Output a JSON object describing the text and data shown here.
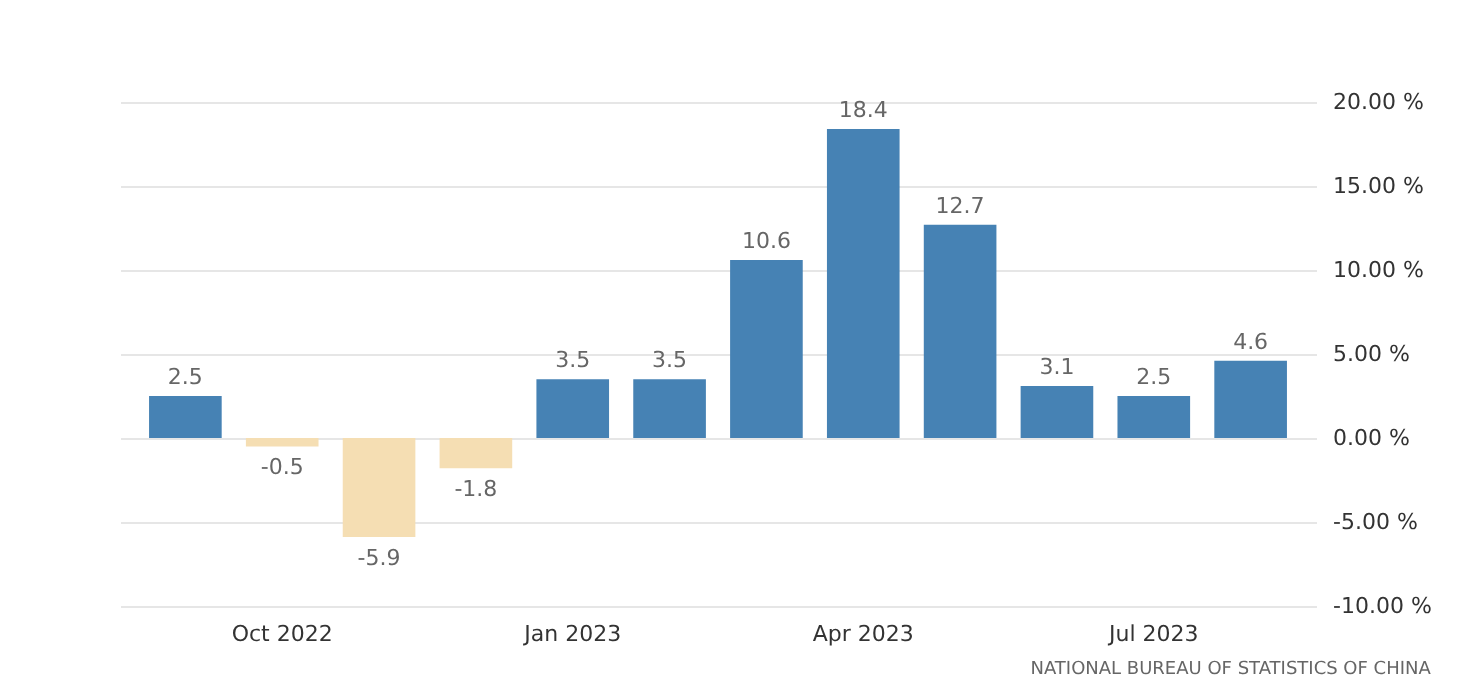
{
  "chart_data": {
    "type": "bar",
    "categories": [
      null,
      "Oct 2022",
      null,
      null,
      "Jan 2023",
      null,
      null,
      "Apr 2023",
      null,
      null,
      "Jul 2023",
      null
    ],
    "values": [
      2.5,
      -0.5,
      -5.9,
      -1.8,
      3.5,
      3.5,
      10.6,
      18.4,
      12.7,
      3.1,
      2.5,
      4.6
    ],
    "colors": [
      "#4682b4",
      "#f5deb3",
      "#f5deb3",
      "#f5deb3",
      "#4682b4",
      "#4682b4",
      "#4682b4",
      "#4682b4",
      "#4682b4",
      "#4682b4",
      "#4682b4",
      "#4682b4"
    ],
    "data_labels": true,
    "ylim": [
      -10,
      20
    ],
    "yticks": [
      {
        "value": 20,
        "label": "20.00 %"
      },
      {
        "value": 15,
        "label": "15.00 %"
      },
      {
        "value": 10,
        "label": "10.00 %"
      },
      {
        "value": 5,
        "label": "5.00 %"
      },
      {
        "value": 0,
        "label": "0.00 %"
      },
      {
        "value": -5,
        "label": "-5.00 %"
      },
      {
        "value": -10,
        "label": "-10.00 %"
      }
    ],
    "grid": "y",
    "annotations": [
      "NATIONAL BUREAU OF STATISTICS OF CHINA"
    ]
  }
}
